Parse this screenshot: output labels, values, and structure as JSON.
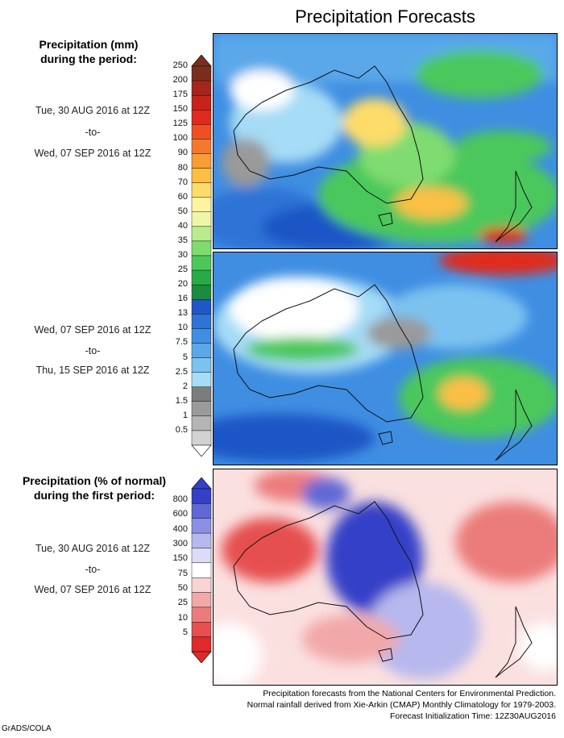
{
  "title": "Precipitation Forecasts",
  "legend1": {
    "heading": [
      "Precipitation (mm)",
      "during the period:"
    ],
    "ticks": [
      "250",
      "200",
      "175",
      "150",
      "125",
      "100",
      "90",
      "80",
      "70",
      "60",
      "50",
      "40",
      "35",
      "30",
      "25",
      "20",
      "16",
      "13",
      "10",
      "7.5",
      "5",
      "2.5",
      "2",
      "1.5",
      "1",
      "0.5"
    ],
    "colors": [
      "#7b2e1e",
      "#a5261b",
      "#c8221c",
      "#e0291f",
      "#ef4f22",
      "#f5792c",
      "#f89c36",
      "#fbbf45",
      "#fddc6a",
      "#fff2a0",
      "#f0f6a8",
      "#b9ec8f",
      "#7fdc6f",
      "#4cc85b",
      "#2aaa47",
      "#1b8c3d",
      "#1f57c6",
      "#2e73d6",
      "#3f8ee2",
      "#5aa8ea",
      "#7bc2f0",
      "#a6dcf6",
      "#7c7c7c",
      "#9a9a9a",
      "#b5b5b5",
      "#d2d2d2"
    ],
    "colors_bottom_cap": "#ffffff"
  },
  "period1": {
    "from": "Tue, 30 AUG 2016 at 12Z",
    "to": "-to-",
    "until": "Wed, 07 SEP 2016 at 12Z"
  },
  "period2": {
    "from": "Wed, 07 SEP 2016 at 12Z",
    "to": "-to-",
    "until": "Thu, 15 SEP 2016 at 12Z"
  },
  "legend2": {
    "heading": [
      "Precipitation (% of normal)",
      "during the first period:"
    ],
    "ticks": [
      "800",
      "600",
      "400",
      "300",
      "150",
      "75",
      "50",
      "25",
      "10",
      "5"
    ],
    "colors": [
      "#3440c8",
      "#6068d6",
      "#8c90e2",
      "#b6b8ee",
      "#dcdcf6",
      "#ffffff",
      "#f8d4d4",
      "#f2a8a8",
      "#ec7c7c",
      "#e65050",
      "#e02a2a"
    ]
  },
  "period3": {
    "from": "Tue, 30 AUG 2016 at 12Z",
    "to": "-to-",
    "until": "Wed, 07 SEP 2016 at 12Z"
  },
  "footer": [
    "Precipitation forecasts from the National Centers for Environmental Prediction.",
    "Normal rainfall derived from Xie-Arkin (CMAP) Monthly Climatology for 1979-2003.",
    "Forecast Initialization Time: 12Z30AUG2016"
  ],
  "credit": "GrADS/COLA"
}
